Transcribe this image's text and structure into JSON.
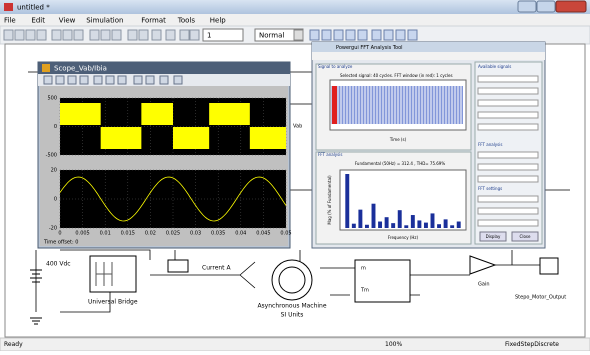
{
  "window": {
    "title": "untitled *"
  },
  "menu": [
    "File",
    "Edit",
    "View",
    "Simulation",
    "Format",
    "Tools",
    "Help"
  ],
  "toolbar": {
    "stop_time": "1",
    "mode": "Normal"
  },
  "scope": {
    "title": "Scope_Vab/Ibia",
    "plot1_yticks": [
      "500",
      "0",
      "-500"
    ],
    "plot2_yticks": [
      "20",
      "0",
      "-20"
    ],
    "xticks": [
      "0",
      "0.005",
      "0.01",
      "0.015",
      "0.02",
      "0.025",
      "0.03",
      "0.035",
      "0.04",
      "0.045",
      "0.05"
    ],
    "time_offset": "Time offset:  0"
  },
  "fft": {
    "title": "Powergui FFT Analysis Tool",
    "signal_panel": "Signal to analyze",
    "signal_caption": "Selected signal: 40 cycles. FFT window (in red): 1 cycles",
    "signal_xlabel": "Time (s)",
    "analysis_panel": "FFT analysis",
    "result": "Fundamental (50Hz) = 312.4 , THD= 75.69%",
    "fft_xlabel": "Frequency (Hz)",
    "fft_ylabel": "Mag (% of Fundamental)",
    "bars": [
      100,
      8,
      34,
      6,
      45,
      12,
      20,
      9,
      33,
      5,
      24,
      14,
      10,
      27,
      7,
      16,
      5,
      12
    ],
    "bars_ylim": [
      0,
      100
    ],
    "available": "Available signals",
    "fft_analysis": "FFT analysis",
    "fft_settings": "FFT settings",
    "buttons": [
      "Display",
      "Close"
    ]
  },
  "diagram": {
    "source": "400 Vdc",
    "bridge": "Universal Bridge",
    "current": "Current A",
    "machine": [
      "Asynchronous Machine",
      "SI Units"
    ],
    "gain": "Gain",
    "output": "Stepo_Motor_Output",
    "port_tm": "Tm",
    "port_vab": "Vab",
    "port_m": "m"
  },
  "status": [
    "Ready",
    "100%",
    "FixedStepDiscrete"
  ]
}
